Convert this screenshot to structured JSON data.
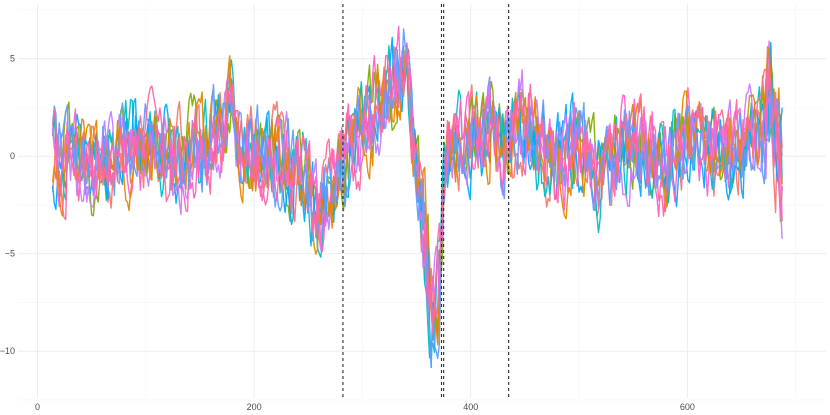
{
  "chart_data": {
    "type": "line",
    "xlim": [
      -18,
      728
    ],
    "ylim": [
      -12.4,
      7.8
    ],
    "x_ticks": [
      0,
      200,
      400,
      600
    ],
    "y_ticks": [
      -10,
      -5,
      0,
      5
    ],
    "x_minor_ticks": [
      100,
      300,
      500,
      700
    ],
    "y_minor_ticks": [
      -12.5,
      -7.5,
      -2.5,
      2.5,
      7.5
    ],
    "grid": true,
    "x_start": 14,
    "x_end": 688,
    "vertical_lines": [
      {
        "x": 282
      },
      {
        "x": 373
      },
      {
        "x": 375
      },
      {
        "x": 435
      }
    ],
    "envelope": [
      [
        14,
        0.0
      ],
      [
        60,
        -0.4
      ],
      [
        90,
        0.6
      ],
      [
        130,
        -0.2
      ],
      [
        170,
        1.2
      ],
      [
        178,
        3.0
      ],
      [
        185,
        0.0
      ],
      [
        215,
        0.3
      ],
      [
        245,
        -1.0
      ],
      [
        260,
        -3.2
      ],
      [
        270,
        -2.0
      ],
      [
        285,
        0.0
      ],
      [
        305,
        1.6
      ],
      [
        320,
        3.2
      ],
      [
        333,
        4.2
      ],
      [
        340,
        5.0
      ],
      [
        346,
        1.8
      ],
      [
        352,
        -1.5
      ],
      [
        358,
        -4.5
      ],
      [
        363,
        -7.5
      ],
      [
        368,
        -8.2
      ],
      [
        372,
        -5.5
      ],
      [
        376,
        -0.8
      ],
      [
        382,
        0.5
      ],
      [
        395,
        1.2
      ],
      [
        410,
        0.9
      ],
      [
        420,
        1.6
      ],
      [
        428,
        0.4
      ],
      [
        438,
        1.0
      ],
      [
        450,
        2.2
      ],
      [
        460,
        0.8
      ],
      [
        480,
        -0.6
      ],
      [
        500,
        0.7
      ],
      [
        520,
        -1.2
      ],
      [
        540,
        0.5
      ],
      [
        560,
        0.3
      ],
      [
        580,
        -0.4
      ],
      [
        600,
        1.0
      ],
      [
        620,
        0.0
      ],
      [
        640,
        0.3
      ],
      [
        660,
        0.5
      ],
      [
        675,
        3.0
      ],
      [
        680,
        2.0
      ],
      [
        688,
        -0.5
      ]
    ],
    "series": [
      {
        "color": "#F8766D",
        "seed": 11
      },
      {
        "color": "#7CAE00",
        "seed": 23
      },
      {
        "color": "#00BFC4",
        "seed": 37
      },
      {
        "color": "#00A9FF",
        "seed": 41
      },
      {
        "color": "#C77CFF",
        "seed": 53
      },
      {
        "color": "#FF61CC",
        "seed": 67
      },
      {
        "color": "#E58700",
        "seed": 71
      },
      {
        "color": "#619CFF",
        "seed": 83
      },
      {
        "color": "#FF67A4",
        "seed": 97
      }
    ]
  }
}
